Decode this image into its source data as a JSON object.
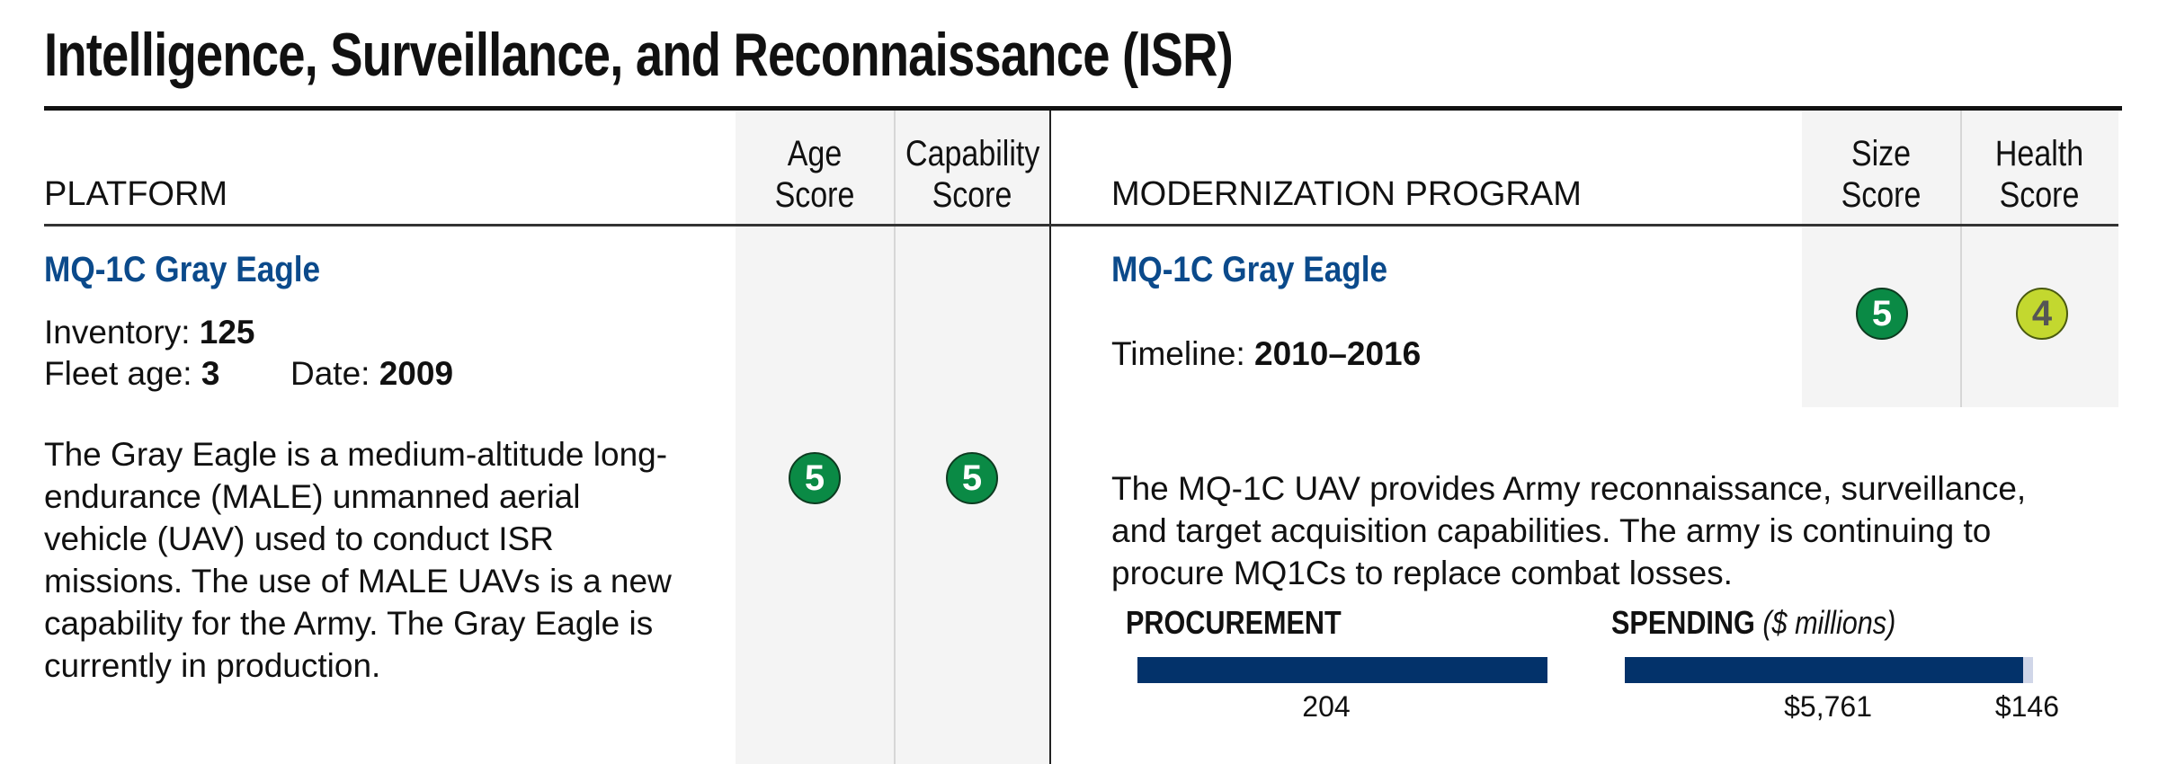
{
  "title": "Intelligence, Surveillance, and Reconnaissance (ISR)",
  "platform": {
    "header": "PLATFORM",
    "age_score_header": [
      "Age",
      "Score"
    ],
    "capability_score_header": [
      "Capability",
      "Score"
    ],
    "name": "MQ-1C Gray Eagle",
    "inventory_label": "Inventory:",
    "inventory_value": "125",
    "fleet_age_label": "Fleet age:",
    "fleet_age_value": "3",
    "date_label": "Date:",
    "date_value": "2009",
    "description": "The Gray Eagle is a medium-altitude long-endurance (MALE) unmanned aerial vehicle (UAV) used to conduct ISR missions. The use of MALE UAVs is a new capability for the Army. The Gray Eagle is currently in production.",
    "age_score": "5",
    "capability_score": "5"
  },
  "program": {
    "header": "MODERNIZATION PROGRAM",
    "size_score_header": [
      "Size",
      "Score"
    ],
    "health_score_header": [
      "Health",
      "Score"
    ],
    "name": "MQ-1C Gray Eagle",
    "timeline_label": "Timeline:",
    "timeline_value": "2010–2016",
    "description": "The MQ-1C UAV provides Army reconnaissance, surveillance, and target acquisition capabilities. The army is continuing to procure MQ1Cs to replace combat losses.",
    "size_score": "5",
    "health_score": "4",
    "procurement": {
      "label": "PROCUREMENT",
      "value": 204,
      "value_label": "204"
    },
    "spending": {
      "label": "SPENDING",
      "unit": "($ millions)",
      "spent": 5761,
      "spent_label": "$5,761",
      "remaining": 146,
      "remaining_label": "$146"
    }
  },
  "colors": {
    "score_5": "#0a8a45",
    "score_4": "#c3d82f",
    "bar": "#03326a",
    "bar_remaining": "#d0d6e8",
    "name": "#0b4a8b"
  }
}
